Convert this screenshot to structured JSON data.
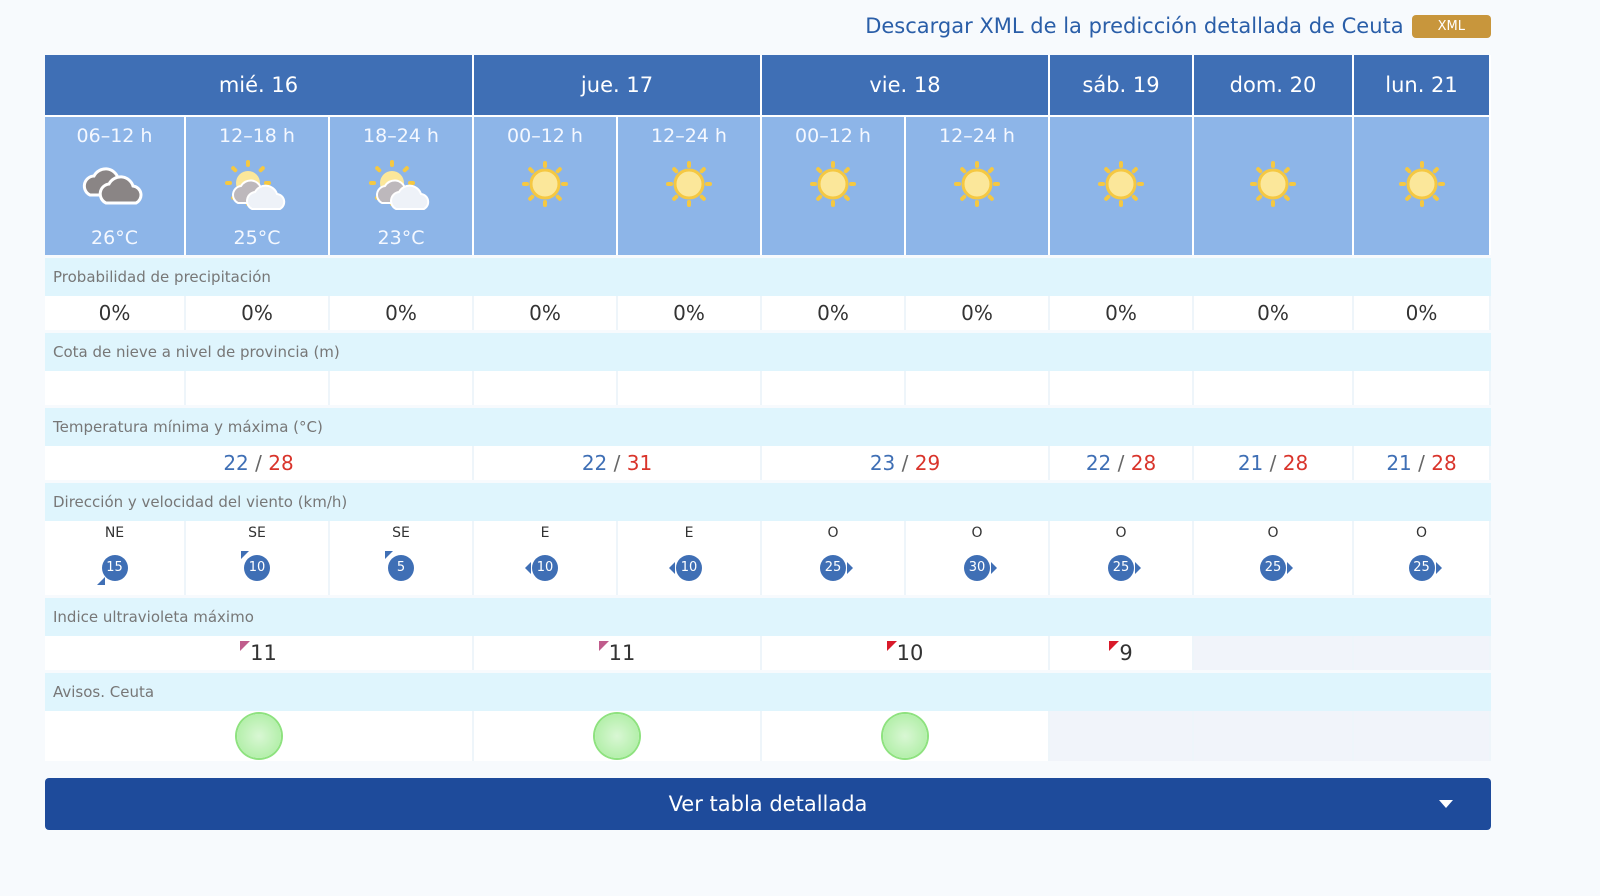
{
  "download": {
    "text": "Descargar XML de la predicción detallada de Ceuta",
    "badge": "XML"
  },
  "days": [
    {
      "label": "mié. 16",
      "span": 3
    },
    {
      "label": "jue. 17",
      "span": 2
    },
    {
      "label": "vie. 18",
      "span": 2
    },
    {
      "label": "sáb. 19",
      "span": 1
    },
    {
      "label": "dom. 20",
      "span": 1
    },
    {
      "label": "lun. 21",
      "span": 1
    }
  ],
  "periods": [
    {
      "label": "06–12 h",
      "icon": "cloudy-icon",
      "temp": "26°C"
    },
    {
      "label": "12–18 h",
      "icon": "partly-cloudy-icon",
      "temp": "25°C"
    },
    {
      "label": "18–24 h",
      "icon": "partly-cloudy-icon",
      "temp": "23°C"
    },
    {
      "label": "00–12 h",
      "icon": "sun-icon",
      "temp": ""
    },
    {
      "label": "12–24 h",
      "icon": "sun-icon",
      "temp": ""
    },
    {
      "label": "00–12 h",
      "icon": "sun-icon",
      "temp": ""
    },
    {
      "label": "12–24 h",
      "icon": "sun-icon",
      "temp": ""
    },
    {
      "label": "",
      "icon": "sun-icon",
      "temp": ""
    },
    {
      "label": "",
      "icon": "sun-icon",
      "temp": ""
    },
    {
      "label": "",
      "icon": "sun-icon",
      "temp": ""
    }
  ],
  "labels": {
    "precip": "Probabilidad de precipitación",
    "snow": "Cota de nieve a nivel de provincia (m)",
    "temp": "Temperatura mínima y máxima (°C)",
    "wind": "Dirección y velocidad del viento (km/h)",
    "uv": "Indice ultravioleta máximo",
    "warnings": "Avisos. Ceuta"
  },
  "precip": [
    "0%",
    "0%",
    "0%",
    "0%",
    "0%",
    "0%",
    "0%",
    "0%",
    "0%",
    "0%"
  ],
  "temps": [
    {
      "min": "22",
      "max": "28",
      "span": 3
    },
    {
      "min": "22",
      "max": "31",
      "span": 2
    },
    {
      "min": "23",
      "max": "29",
      "span": 2
    },
    {
      "min": "22",
      "max": "28",
      "span": 1
    },
    {
      "min": "21",
      "max": "28",
      "span": 1
    },
    {
      "min": "21",
      "max": "28",
      "span": 1
    }
  ],
  "wind": [
    {
      "dir": "NE",
      "speed": "15"
    },
    {
      "dir": "SE",
      "speed": "10"
    },
    {
      "dir": "SE",
      "speed": "5"
    },
    {
      "dir": "E",
      "speed": "10"
    },
    {
      "dir": "E",
      "speed": "10"
    },
    {
      "dir": "O",
      "speed": "25"
    },
    {
      "dir": "O",
      "speed": "30"
    },
    {
      "dir": "O",
      "speed": "25"
    },
    {
      "dir": "O",
      "speed": "25"
    },
    {
      "dir": "O",
      "speed": "25"
    }
  ],
  "uv": [
    {
      "value": "11",
      "span": 3,
      "level": "extreme"
    },
    {
      "value": "11",
      "span": 2,
      "level": "extreme"
    },
    {
      "value": "10",
      "span": 2,
      "level": "very-high"
    },
    {
      "value": "9",
      "span": 1,
      "level": "very-high"
    },
    {
      "value": "",
      "span": 1
    },
    {
      "value": "",
      "span": 1
    }
  ],
  "warnings": [
    {
      "span": 3,
      "level": "green"
    },
    {
      "span": 2,
      "level": "green"
    },
    {
      "span": 2,
      "level": "green"
    },
    {
      "span": 1
    },
    {
      "span": 1
    },
    {
      "span": 1
    }
  ],
  "colors": {
    "header": "#3f6fb5",
    "period": "#8db5e8",
    "label_bg": "#dff5fd",
    "max_temp": "#d9342b",
    "button": "#1e4b9b"
  },
  "button": {
    "label": "Ver tabla detallada"
  }
}
